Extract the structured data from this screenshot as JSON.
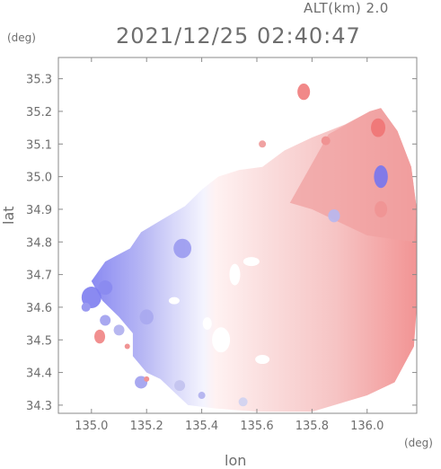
{
  "header": {
    "altitude": "ALT(km) 2.0",
    "timestamp": "2021/12/25 02:40:47"
  },
  "chart_data": {
    "type": "heatmap",
    "title": "2021/12/25 02:40:47",
    "subtitle": "ALT(km) 2.0",
    "xlabel": "lon",
    "ylabel": "lat",
    "x_unit": "(deg)",
    "y_unit": "(deg)",
    "xlim": [
      134.88,
      136.18
    ],
    "ylim": [
      34.275,
      35.365
    ],
    "x_ticks": [
      135.0,
      135.2,
      135.4,
      135.6,
      135.8,
      136.0
    ],
    "x_tick_labels": [
      "135.0",
      "135.2",
      "135.4",
      "135.6",
      "135.8",
      "136.0"
    ],
    "y_ticks": [
      34.3,
      34.4,
      34.5,
      34.6,
      34.7,
      34.8,
      34.9,
      35.0,
      35.1,
      35.2,
      35.3
    ],
    "y_tick_labels": [
      "34.3",
      "34.4",
      "34.5",
      "34.6",
      "34.7",
      "34.8",
      "34.9",
      "35.0",
      "35.1",
      "35.2",
      "35.3"
    ],
    "colormap": {
      "negative": "#6f6ff0",
      "zero": "#ffffff",
      "positive": "#f06464"
    },
    "grid": false,
    "fields": {
      "main_coverage": {
        "lon": [
          135.52,
          136.17,
          135.0,
          135.75
        ],
        "lat": [
          35.02,
          35.22,
          34.96,
          34.33
        ]
      },
      "boundary_lon": 135.54,
      "blue_patches": [
        {
          "lon": 135.0,
          "lat": 34.63,
          "level": -0.9
        },
        {
          "lon": 135.2,
          "lat": 34.57,
          "level": -0.6
        },
        {
          "lon": 135.33,
          "lat": 34.78,
          "level": -0.7
        },
        {
          "lon": 136.05,
          "lat": 35.0,
          "level": -0.95
        },
        {
          "lon": 135.88,
          "lat": 34.88,
          "level": -0.5
        }
      ],
      "red_patches": [
        {
          "lon": 136.04,
          "lat": 35.15,
          "level": 0.9
        },
        {
          "lon": 135.77,
          "lat": 35.26,
          "level": 0.85
        },
        {
          "lon": 135.03,
          "lat": 34.51,
          "level": 0.8
        },
        {
          "lon": 136.05,
          "lat": 34.9,
          "level": 0.7
        }
      ]
    }
  }
}
